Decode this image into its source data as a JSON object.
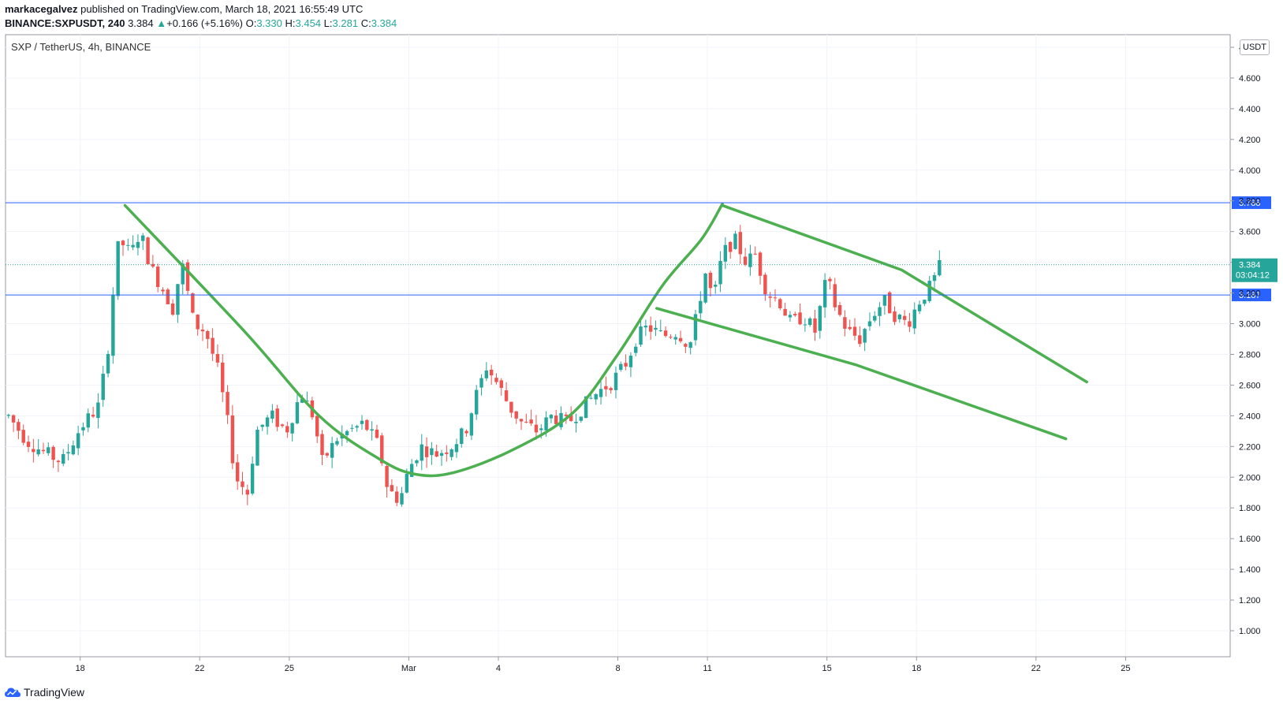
{
  "header": {
    "author": "markacegalvez",
    "published_text": " published on TradingView.com, March 18, 2021 16:55:49 UTC",
    "symbol_interval": "BINANCE:SXPUSDT, 240",
    "last": "3.384",
    "change": "+0.166 (+5.16%)",
    "o_label": "O:",
    "o_value": "3.330",
    "h_label": "H:",
    "h_value": "3.454",
    "l_label": "L:",
    "l_value": "3.281",
    "c_label": "C:",
    "c_value": "3.384"
  },
  "legend": "SXP / TetherUS, 4h, BINANCE",
  "currency": "USDT",
  "price_tag": {
    "price": "3.384",
    "countdown": "03:04:12"
  },
  "brand": "TradingView",
  "colors": {
    "up": "#26a69a",
    "down": "#ef5350",
    "pattern": "#4caf50",
    "level": "#2962ff",
    "price_tag": "#26a69a"
  },
  "chart_data": {
    "type": "candlestick",
    "ylim": [
      1.0,
      4.8
    ],
    "y_ticks": [
      "4.800",
      "4.600",
      "4.400",
      "4.200",
      "4.000",
      "3.800",
      "3.600",
      "3.400",
      "3.200",
      "3.000",
      "2.800",
      "2.600",
      "2.400",
      "2.200",
      "2.000",
      "1.800",
      "1.600",
      "1.400",
      "1.200",
      "1.000"
    ],
    "x_ticks": [
      {
        "label": "18",
        "day": 18
      },
      {
        "label": "22",
        "day": 22
      },
      {
        "label": "25",
        "day": 25
      },
      {
        "label": "Mar",
        "day": 29
      },
      {
        "label": "4",
        "day": 32
      },
      {
        "label": "8",
        "day": 36
      },
      {
        "label": "11",
        "day": 39
      },
      {
        "label": "15",
        "day": 43
      },
      {
        "label": "18",
        "day": 46
      },
      {
        "label": "22",
        "day": 50
      },
      {
        "label": "25",
        "day": 53
      }
    ],
    "horizontal_levels": [
      {
        "price": 3.788,
        "label": "3.788"
      },
      {
        "price": 3.187,
        "label": "3.187"
      }
    ],
    "last_price": 3.384,
    "path_points": [
      [
        15.6,
        2.4
      ],
      [
        16.2,
        2.24
      ],
      [
        16.8,
        2.16
      ],
      [
        17.4,
        2.1
      ],
      [
        18.0,
        2.32
      ],
      [
        18.6,
        2.46
      ],
      [
        18.9,
        2.78
      ],
      [
        19.1,
        3.2
      ],
      [
        19.3,
        3.55
      ],
      [
        19.7,
        3.45
      ],
      [
        20.0,
        3.6
      ],
      [
        20.4,
        3.35
      ],
      [
        20.7,
        3.25
      ],
      [
        21.1,
        3.1
      ],
      [
        21.4,
        3.4
      ],
      [
        21.8,
        3.0
      ],
      [
        22.2,
        2.95
      ],
      [
        22.6,
        2.7
      ],
      [
        22.9,
        2.4
      ],
      [
        23.2,
        2.0
      ],
      [
        23.6,
        1.9
      ],
      [
        23.9,
        2.3
      ],
      [
        24.4,
        2.4
      ],
      [
        24.9,
        2.3
      ],
      [
        25.4,
        2.55
      ],
      [
        25.8,
        2.4
      ],
      [
        26.1,
        2.1
      ],
      [
        26.6,
        2.25
      ],
      [
        27.0,
        2.3
      ],
      [
        27.5,
        2.35
      ],
      [
        28.0,
        2.2
      ],
      [
        28.3,
        1.92
      ],
      [
        28.7,
        1.85
      ],
      [
        29.0,
        2.05
      ],
      [
        29.4,
        2.2
      ],
      [
        29.9,
        2.15
      ],
      [
        30.4,
        2.2
      ],
      [
        30.9,
        2.3
      ],
      [
        31.2,
        2.5
      ],
      [
        31.6,
        2.72
      ],
      [
        32.0,
        2.6
      ],
      [
        32.4,
        2.45
      ],
      [
        32.8,
        2.35
      ],
      [
        33.3,
        2.3
      ],
      [
        33.8,
        2.4
      ],
      [
        34.3,
        2.35
      ],
      [
        34.8,
        2.45
      ],
      [
        35.3,
        2.55
      ],
      [
        35.8,
        2.62
      ],
      [
        36.3,
        2.75
      ],
      [
        36.6,
        2.9
      ],
      [
        37.0,
        2.98
      ],
      [
        37.5,
        2.92
      ],
      [
        38.0,
        2.95
      ],
      [
        38.4,
        2.85
      ],
      [
        38.7,
        3.1
      ],
      [
        38.9,
        3.35
      ],
      [
        39.2,
        3.15
      ],
      [
        39.5,
        3.45
      ],
      [
        39.9,
        3.55
      ],
      [
        40.3,
        3.4
      ],
      [
        40.6,
        3.45
      ],
      [
        41.0,
        3.2
      ],
      [
        41.4,
        3.15
      ],
      [
        41.8,
        3.0
      ],
      [
        42.2,
        3.05
      ],
      [
        42.6,
        2.95
      ],
      [
        43.0,
        3.3
      ],
      [
        43.3,
        3.1
      ],
      [
        43.7,
        2.95
      ],
      [
        44.1,
        2.9
      ],
      [
        44.5,
        3.05
      ],
      [
        44.9,
        3.15
      ],
      [
        45.3,
        3.05
      ],
      [
        45.7,
        3.0
      ],
      [
        46.1,
        3.15
      ],
      [
        46.5,
        3.25
      ],
      [
        46.8,
        3.38
      ]
    ],
    "pattern_lines": [
      {
        "name": "cup-left",
        "points": [
          [
            19.5,
            3.77
          ],
          [
            23.5,
            2.95
          ],
          [
            26.0,
            2.4
          ],
          [
            28.0,
            2.12
          ],
          [
            29.2,
            2.02
          ],
          [
            30.5,
            2.03
          ],
          [
            32.5,
            2.18
          ],
          [
            34.5,
            2.42
          ],
          [
            36.0,
            2.8
          ],
          [
            37.5,
            3.25
          ],
          [
            38.8,
            3.55
          ],
          [
            39.5,
            3.78
          ]
        ]
      },
      {
        "name": "flag-upper",
        "points": [
          [
            39.5,
            3.77
          ],
          [
            45.5,
            3.35
          ],
          [
            51.7,
            2.62
          ]
        ]
      },
      {
        "name": "flag-lower",
        "points": [
          [
            37.3,
            3.1
          ],
          [
            44.0,
            2.73
          ],
          [
            51.0,
            2.25
          ]
        ]
      }
    ],
    "x_range": [
      15.5,
      56.5
    ]
  }
}
